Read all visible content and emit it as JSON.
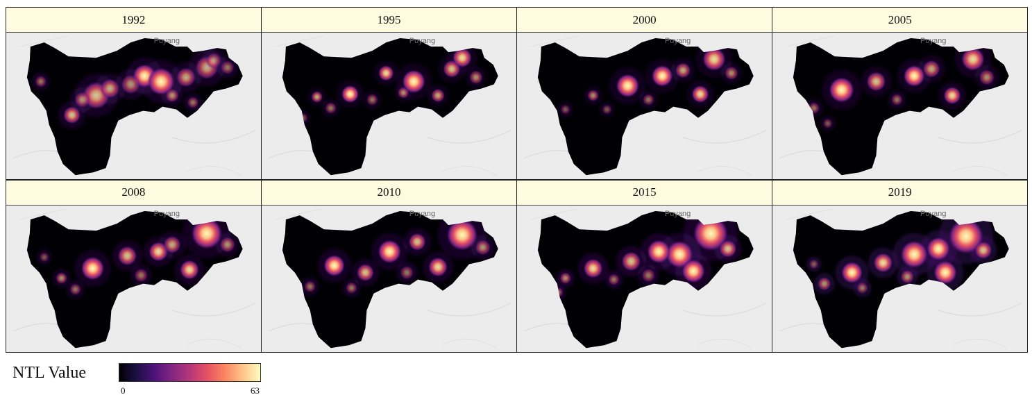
{
  "panels": [
    {
      "year": "1992",
      "city": "Puyang",
      "intensity": 0.75
    },
    {
      "year": "1995",
      "city": "Puyang",
      "intensity": 0.55
    },
    {
      "year": "2000",
      "city": "Puyang",
      "intensity": 0.6
    },
    {
      "year": "2005",
      "city": "Puyang",
      "intensity": 0.65
    },
    {
      "year": "2008",
      "city": "Puyang",
      "intensity": 0.7
    },
    {
      "year": "2010",
      "city": "Puyang",
      "intensity": 0.75
    },
    {
      "year": "2015",
      "city": "Puyang",
      "intensity": 0.85
    },
    {
      "year": "2019",
      "city": "Puyang",
      "intensity": 0.95
    }
  ],
  "legend": {
    "title": "NTL Value",
    "min": "0",
    "max": "63",
    "colors": [
      "#000004",
      "#1c1044",
      "#4f127b",
      "#812581",
      "#b5367a",
      "#e55064",
      "#fb8761",
      "#fec287",
      "#fcfdbf"
    ]
  }
}
